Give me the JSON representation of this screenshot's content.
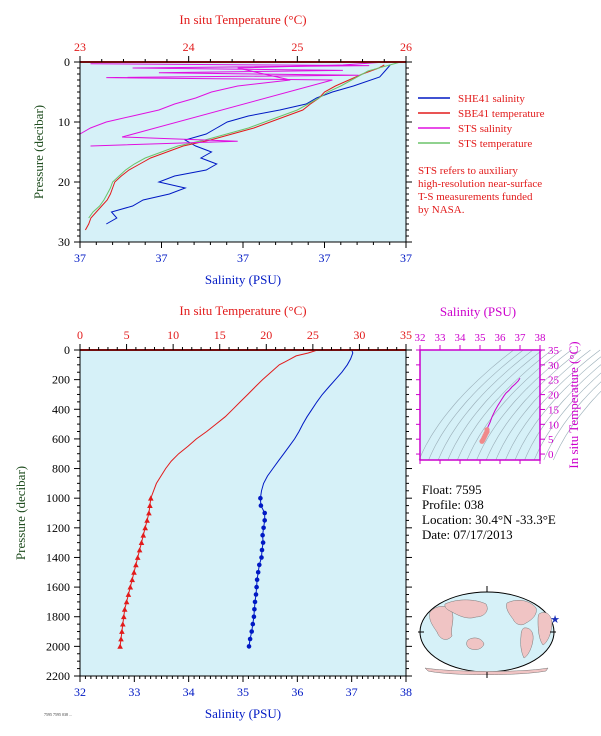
{
  "colors": {
    "plot_bg": "#d6f1f8",
    "temperature": "#e21b1b",
    "salinity": "#0019c4",
    "sts_salinity": "#e010e0",
    "sts_temperature": "#6cc46a",
    "pressure_label": "#1f4d1f",
    "ts_axis": "#cc00cc",
    "ts_grid": "#9aaeb8",
    "ts_point": "#f08a8a",
    "map_land": "#f0c4c4",
    "map_ocean": "#d6f1f8",
    "float_marker": "#1a2fb8"
  },
  "top_chart": {
    "top_axis_title": "In situ Temperature (°C)",
    "top_ticks": [
      "23",
      "24",
      "25",
      "26"
    ],
    "left_axis_title": "Pressure (decibar)",
    "left_ticks": [
      "0",
      "10",
      "20",
      "30"
    ],
    "bottom_axis_title": "Salinity (PSU)",
    "bottom_ticks": [
      "37",
      "37",
      "37",
      "37",
      "37"
    ],
    "legend": [
      {
        "label": "SHE41 salinity",
        "color": "#0019c4"
      },
      {
        "label": "SBE41 temperature",
        "color": "#e21b1b"
      },
      {
        "label": "STS salinity",
        "color": "#e010e0"
      },
      {
        "label": "STS temperature",
        "color": "#6cc46a"
      }
    ],
    "note": [
      "STS refers to auxiliary",
      "high-resolution near-surface",
      "T-S measurements funded",
      "by NASA."
    ]
  },
  "bottom_chart": {
    "top_axis_title": "In situ Temperature (°C)",
    "top_ticks": [
      "0",
      "5",
      "10",
      "15",
      "20",
      "25",
      "30",
      "35"
    ],
    "left_axis_title": "Pressure (decibar)",
    "left_ticks": [
      "0",
      "200",
      "400",
      "600",
      "800",
      "1000",
      "1200",
      "1400",
      "1600",
      "1800",
      "2000",
      "2200"
    ],
    "bottom_axis_title": "Salinity (PSU)",
    "bottom_ticks": [
      "32",
      "33",
      "34",
      "35",
      "36",
      "37",
      "38"
    ]
  },
  "ts_diagram": {
    "top_axis_title": "Salinity (PSU)",
    "top_ticks": [
      "32",
      "33",
      "34",
      "35",
      "36",
      "37",
      "38"
    ],
    "right_axis_title": "In situ Temperature (°C)",
    "right_ticks": [
      "0",
      "5",
      "10",
      "15",
      "20",
      "25",
      "30",
      "35"
    ]
  },
  "float_info": {
    "float": "Float:  7595",
    "profile": "Profile:  038",
    "location": "Location:  30.4°N  -33.3°E",
    "date": "Date:  07/17/2013"
  },
  "footer_text": "7595 7595 038 ...",
  "chart_data": [
    {
      "type": "line",
      "title": "",
      "x_top_label": "In situ Temperature (°C)",
      "x_top_range": [
        23,
        26
      ],
      "x_bottom_label": "Salinity (PSU)",
      "ylabel": "Pressure (decibar)",
      "ylim": [
        0,
        30
      ],
      "y_reversed": true,
      "legend_position": "right",
      "series": [
        {
          "name": "SHE41 salinity",
          "axis": "salinity",
          "x": [
            36.99,
            36.98,
            36.97,
            36.92,
            36.88,
            36.85,
            36.83,
            36.78,
            36.72,
            36.68,
            36.66,
            36.64,
            36.6,
            36.62,
            36.65,
            36.63,
            36.66,
            36.64,
            36.58,
            36.55,
            36.6,
            36.57,
            36.52,
            36.5,
            36.46,
            36.47,
            36.45
          ],
          "pressure": [
            0.5,
            1.5,
            2.5,
            4,
            5,
            6,
            7,
            8,
            9,
            10,
            11,
            12,
            13,
            14,
            15,
            16,
            17,
            18,
            19,
            20,
            21,
            22,
            23,
            24,
            25,
            26,
            27
          ]
        },
        {
          "name": "SBE41 temperature",
          "axis": "temperature",
          "x": [
            25.8,
            25.75,
            25.6,
            25.35,
            25.25,
            25.2,
            25.12,
            25.05,
            24.9,
            24.75,
            24.6,
            24.4,
            24.2,
            23.95,
            23.8,
            23.65,
            23.55,
            23.45,
            23.38,
            23.32,
            23.3,
            23.28,
            23.25,
            23.2,
            23.15,
            23.1,
            23.08,
            23.05
          ],
          "pressure": [
            0.5,
            1,
            2,
            4,
            5,
            6,
            7,
            8,
            9,
            10,
            11,
            12,
            13,
            14,
            15,
            16,
            17,
            18,
            19,
            20,
            21,
            22,
            23,
            24,
            25,
            26,
            27,
            28
          ]
        },
        {
          "name": "STS salinity",
          "axis": "salinity",
          "x": [
            36.98,
            36.9,
            36.7,
            36.75,
            36.8,
            36.7,
            36.65,
            36.62,
            36.58,
            36.55,
            36.5,
            36.45,
            36.42,
            36.4
          ],
          "pressure": [
            0,
            0.5,
            1,
            2,
            3,
            4,
            5,
            6,
            7,
            8,
            9,
            10,
            11,
            12
          ]
        },
        {
          "name": "STS temperature",
          "axis": "temperature",
          "x": [
            25.95,
            25.85,
            25.65,
            25.4,
            25.28,
            25.2,
            25.1,
            25.0,
            24.85,
            24.7,
            24.55,
            24.35,
            24.15,
            23.9,
            23.75,
            23.6,
            23.5,
            23.42,
            23.36,
            23.3,
            23.28,
            23.25,
            23.22,
            23.18,
            23.12,
            23.08
          ],
          "pressure": [
            0,
            0.5,
            1.5,
            4,
            5,
            6,
            7,
            8,
            9,
            10,
            11,
            12,
            13,
            14,
            15,
            16,
            17,
            18,
            19,
            20,
            21,
            22,
            23,
            24,
            25,
            26
          ]
        }
      ]
    },
    {
      "type": "line",
      "title": "",
      "x_top_label": "In situ Temperature (°C)",
      "x_top_range": [
        0,
        35
      ],
      "x_bottom_label": "Salinity (PSU)",
      "x_bottom_range": [
        32,
        38
      ],
      "ylabel": "Pressure (decibar)",
      "ylim": [
        0,
        2200
      ],
      "y_reversed": true,
      "series": [
        {
          "name": "",
          "axis": "temperature",
          "pressure": [
            0,
            10,
            20,
            40,
            60,
            80,
            100,
            150,
            200,
            250,
            300,
            350,
            400,
            450,
            500,
            550,
            600,
            650,
            700,
            750,
            800,
            850,
            900,
            950,
            1000,
            1050,
            1100,
            1150,
            1200,
            1250,
            1300,
            1350,
            1400,
            1450,
            1500,
            1550,
            1600,
            1650,
            1700,
            1750,
            1800,
            1850,
            1900,
            1950,
            2000
          ],
          "x": [
            25.5,
            25.0,
            24.5,
            23.2,
            22.6,
            22.0,
            21.4,
            20.5,
            19.6,
            18.8,
            18.0,
            17.2,
            16.4,
            15.6,
            14.6,
            13.6,
            12.5,
            11.6,
            10.6,
            9.8,
            9.2,
            8.7,
            8.2,
            7.9,
            7.6,
            7.5,
            7.4,
            7.2,
            7.0,
            6.8,
            6.6,
            6.4,
            6.2,
            6.0,
            5.8,
            5.6,
            5.4,
            5.2,
            5.0,
            4.8,
            4.7,
            4.6,
            4.5,
            4.4,
            4.3
          ]
        },
        {
          "name": "",
          "axis": "salinity",
          "pressure": [
            0,
            20,
            60,
            100,
            150,
            200,
            250,
            300,
            350,
            400,
            450,
            500,
            550,
            600,
            650,
            700,
            750,
            800,
            850,
            900,
            950,
            1000,
            1050,
            1100,
            1150,
            1200,
            1250,
            1300,
            1350,
            1400,
            1450,
            1500,
            1550,
            1600,
            1650,
            1700,
            1750,
            1800,
            1850,
            1900,
            1950,
            2000
          ],
          "x": [
            37.0,
            37.02,
            36.98,
            36.92,
            36.82,
            36.7,
            36.58,
            36.46,
            36.36,
            36.27,
            36.18,
            36.1,
            36.03,
            35.95,
            35.85,
            35.75,
            35.65,
            35.55,
            35.45,
            35.38,
            35.34,
            35.32,
            35.33,
            35.4,
            35.4,
            35.38,
            35.36,
            35.37,
            35.35,
            35.34,
            35.3,
            35.28,
            35.26,
            35.25,
            35.24,
            35.22,
            35.21,
            35.2,
            35.18,
            35.16,
            35.13,
            35.11
          ]
        }
      ]
    },
    {
      "type": "scatter",
      "title": "",
      "xlabel": "Salinity (PSU)",
      "xlim": [
        32,
        38
      ],
      "ylabel": "In situ Temperature (°C)",
      "ylim": [
        -2,
        35
      ],
      "grid": true,
      "series": [
        {
          "name": "",
          "x": [
            35.1,
            35.15,
            35.2,
            35.25,
            35.3,
            35.35,
            35.35,
            35.4,
            35.5,
            35.6,
            35.75,
            35.9,
            36.05,
            36.2,
            36.3,
            36.45,
            36.6,
            36.75,
            36.9,
            37.0
          ],
          "y": [
            4.3,
            4.8,
            5.5,
            6.2,
            6.9,
            7.5,
            8.2,
            9.2,
            10.6,
            12.5,
            14.6,
            16.4,
            18.0,
            19.6,
            20.5,
            21.4,
            22.6,
            23.5,
            24.5,
            25.5
          ]
        }
      ]
    }
  ]
}
